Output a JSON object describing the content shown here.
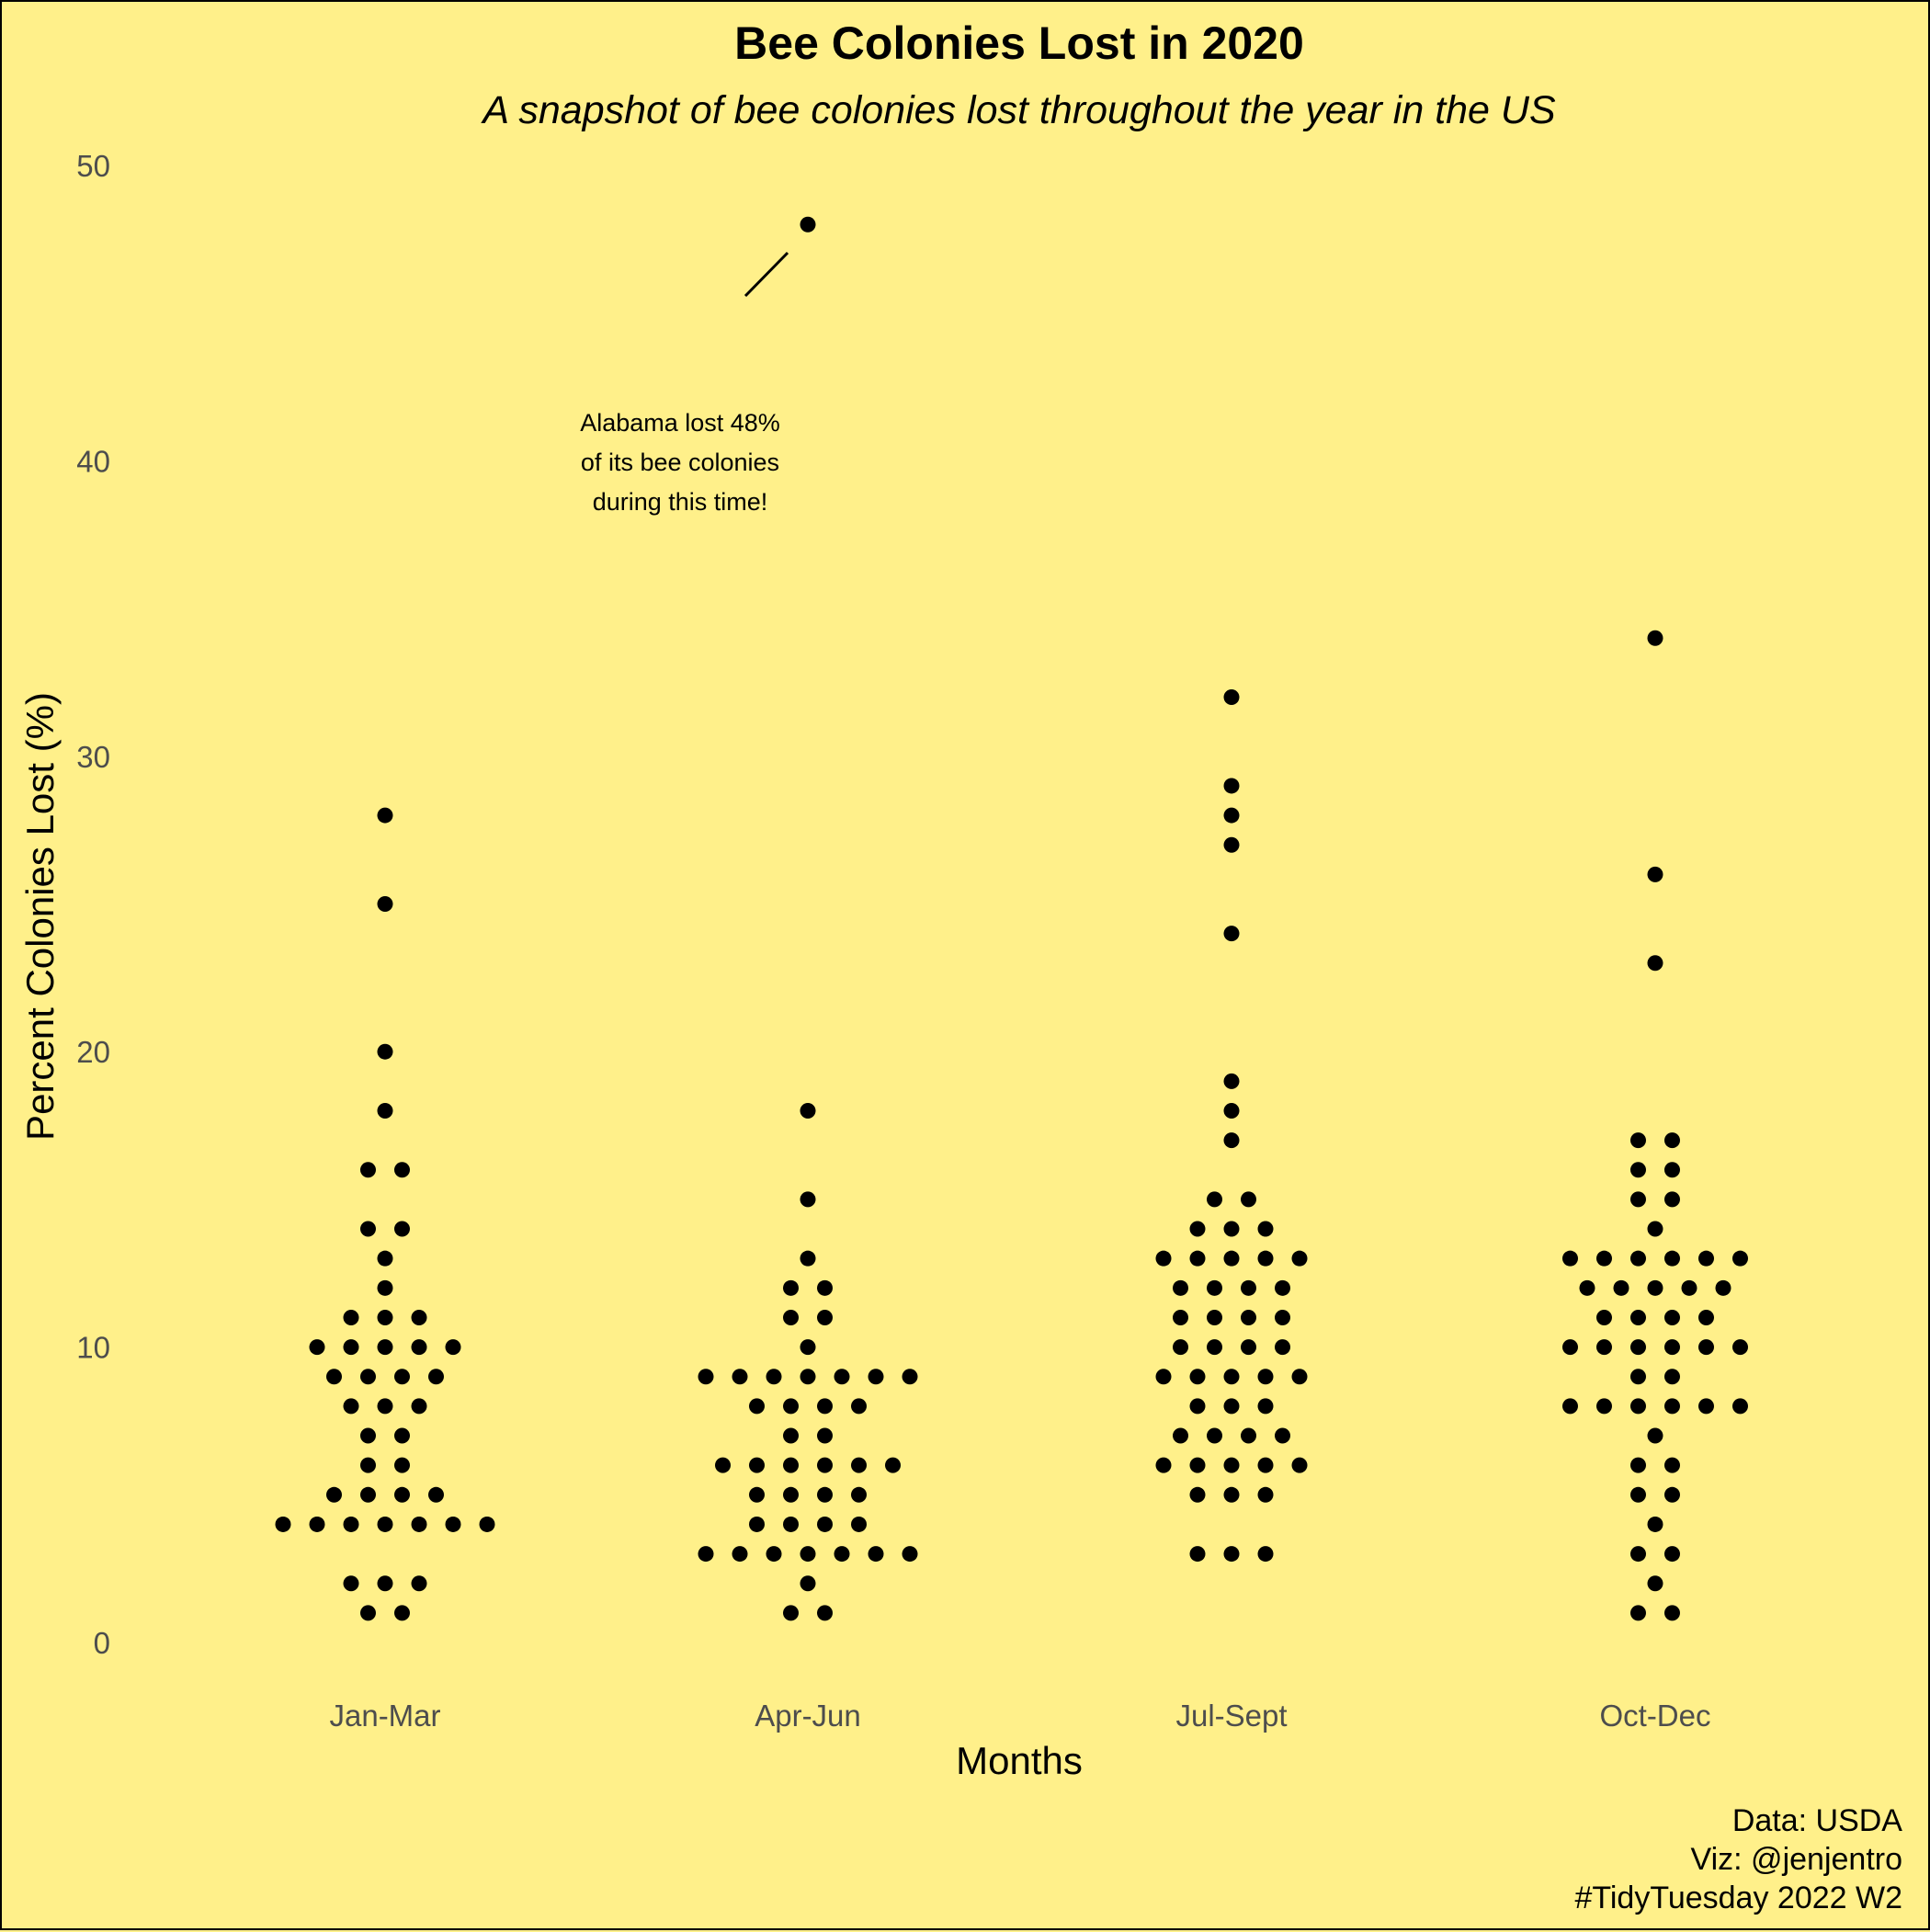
{
  "chart_data": {
    "type": "scatter",
    "title": "Bee Colonies Lost in 2020",
    "subtitle": "A snapshot of bee colonies lost throughout the year in the US",
    "xlabel": "Months",
    "ylabel": "Percent Colonies Lost (%)",
    "ylim": [
      0,
      50
    ],
    "yticks": [
      "0",
      "10",
      "20",
      "30",
      "40",
      "50"
    ],
    "grid": false,
    "categories": [
      "Jan-Mar",
      "Apr-Jun",
      "Jul-Sept",
      "Oct-Dec"
    ],
    "series": [
      {
        "values": [
          28,
          25,
          20,
          18,
          16,
          16,
          14,
          14,
          13,
          12,
          11,
          11,
          11,
          10,
          10,
          10,
          10,
          10,
          9,
          9,
          9,
          9,
          8,
          8,
          8,
          7,
          7,
          6,
          6,
          5,
          5,
          5,
          5,
          4,
          4,
          4,
          4,
          4,
          4,
          4,
          2,
          2,
          2,
          1,
          1
        ]
      },
      {
        "values": [
          48,
          18,
          15,
          13,
          12,
          12,
          11,
          11,
          10,
          9,
          9,
          9,
          9,
          9,
          9,
          9,
          8,
          8,
          8,
          8,
          7,
          7,
          6,
          6,
          6,
          6,
          6,
          6,
          5,
          5,
          5,
          5,
          4,
          4,
          4,
          4,
          3,
          3,
          3,
          3,
          3,
          3,
          3,
          2,
          1,
          1
        ]
      },
      {
        "values": [
          32,
          29,
          28,
          27,
          24,
          19,
          18,
          17,
          15,
          15,
          14,
          14,
          14,
          13,
          13,
          13,
          13,
          13,
          12,
          12,
          12,
          12,
          11,
          11,
          11,
          11,
          10,
          10,
          10,
          10,
          9,
          9,
          9,
          9,
          9,
          8,
          8,
          8,
          7,
          7,
          7,
          7,
          6,
          6,
          6,
          6,
          6,
          5,
          5,
          5,
          3,
          3,
          3
        ]
      },
      {
        "values": [
          34,
          26,
          23,
          17,
          17,
          16,
          16,
          15,
          15,
          14,
          13,
          13,
          13,
          13,
          13,
          13,
          12,
          12,
          12,
          12,
          12,
          11,
          11,
          11,
          11,
          10,
          10,
          10,
          10,
          10,
          10,
          9,
          9,
          8,
          8,
          8,
          8,
          8,
          8,
          7,
          6,
          6,
          5,
          5,
          4,
          3,
          3,
          2,
          1,
          1
        ]
      }
    ],
    "annotations": [
      {
        "lines": [
          "Alabama lost 48%",
          "of its bee colonies",
          "during this time!"
        ]
      }
    ]
  },
  "caption": [
    "Data: USDA",
    "Viz: @jenjentro",
    "#TidyTuesday 2022 W2"
  ]
}
